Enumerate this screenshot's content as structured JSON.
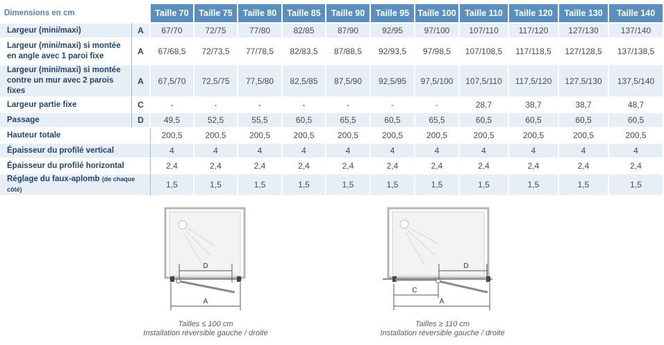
{
  "table": {
    "header_label": "Dimensions en cm",
    "sizes": [
      "Taille 70",
      "Taille 75",
      "Taille 80",
      "Taille 85",
      "Taille 90",
      "Taille 95",
      "Taille 100",
      "Taille 110",
      "Taille 120",
      "Taille 130",
      "Taille 140"
    ],
    "rows": [
      {
        "label": [
          "Largeur (mini/maxi)"
        ],
        "code": "A",
        "values": [
          "67/70",
          "72/75",
          "77/80",
          "82/85",
          "87/90",
          "92/95",
          "97/100",
          "107/110",
          "117/120",
          "127/130",
          "137/140"
        ]
      },
      {
        "label": [
          "Largeur (mini/maxi) si montée",
          "en angle avec 1 paroi fixe"
        ],
        "code": "A",
        "values": [
          "67/68,5",
          "72/73,5",
          "77/78,5",
          "82/83,5",
          "87/88,5",
          "92/93,5",
          "97/98,5",
          "107/108,5",
          "117/118,5",
          "127/128,5",
          "137/138,5"
        ]
      },
      {
        "label": [
          "Largeur (mini/maxi) si montée",
          "contre un mur avec 2 parois fixes"
        ],
        "code": "A",
        "values": [
          "67,5/70",
          "72,5/75",
          "77,5/80",
          "82,5/85",
          "87,5/90",
          "92,5/95",
          "97,5/100",
          "107,5/110",
          "117,5/120",
          "127,5/130",
          "137,5/140"
        ]
      },
      {
        "label": [
          "Largeur partie fixe"
        ],
        "code": "C",
        "values": [
          "-",
          "-",
          "-",
          "-",
          "-",
          "-",
          "-",
          "28,7",
          "38,7",
          "38,7",
          "48,7"
        ]
      },
      {
        "label": [
          "Passage"
        ],
        "code": "D",
        "values": [
          "49,5",
          "52,5",
          "55,5",
          "60,5",
          "65,5",
          "60,5",
          "65,5",
          "60,5",
          "60,5",
          "60,5",
          "60,5"
        ]
      },
      {
        "label": [
          "Hauteur totale"
        ],
        "code": "",
        "values": [
          "200,5",
          "200,5",
          "200,5",
          "200,5",
          "200,5",
          "200,5",
          "200,5",
          "200,5",
          "200,5",
          "200,5",
          "200,5"
        ]
      },
      {
        "label": [
          "Épaisseur du profilé vertical"
        ],
        "code": "",
        "values": [
          "4",
          "4",
          "4",
          "4",
          "4",
          "4",
          "4",
          "4",
          "4",
          "4",
          "4"
        ]
      },
      {
        "label": [
          "Épaisseur du profilé horizontal"
        ],
        "code": "",
        "values": [
          "2,4",
          "2,4",
          "2,4",
          "2,4",
          "2,4",
          "2,4",
          "2,4",
          "2,4",
          "2,4",
          "2,4",
          "2,4"
        ]
      },
      {
        "label": [
          "Réglage du faux-aplomb"
        ],
        "label_small": "(de chaque côté)",
        "code": "",
        "values": [
          "1,5",
          "1,5",
          "1,5",
          "1,5",
          "1,5",
          "1,5",
          "1,5",
          "1,5",
          "1,5",
          "1,5",
          "1,5"
        ]
      }
    ]
  },
  "diagrams": [
    {
      "dim_labels": {
        "d": "D",
        "a": "A"
      },
      "caption_line1": "Tailles ≤ 100 cm",
      "caption_line2": "Installation réversible gauche / droite"
    },
    {
      "dim_labels": {
        "c": "C",
        "d": "D",
        "a": "A"
      },
      "caption_line1": "Tailles ≥ 110 cm",
      "caption_line2": "Installation réversible gauche / droite"
    }
  ],
  "colors": {
    "header_bg": "#5b8fbd",
    "row_shade": "#e7eef5",
    "label_text": "#23456b",
    "value_text": "#4a4a4a"
  }
}
